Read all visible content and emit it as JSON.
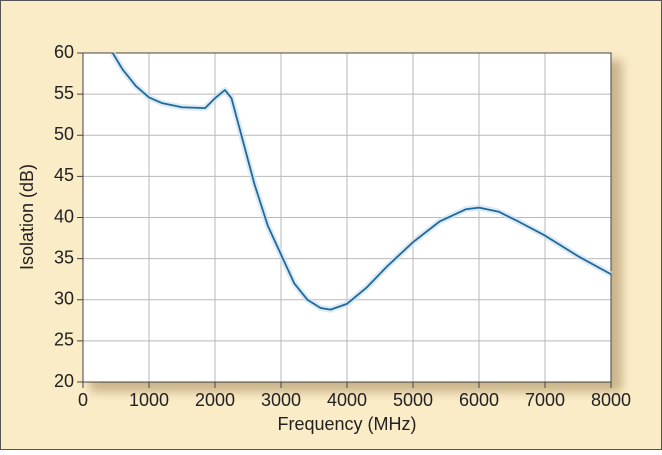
{
  "chart_data": {
    "type": "line",
    "x_label": "Frequency (MHz)",
    "y_label": "Isolation (dB)",
    "x": [
      450,
      600,
      800,
      1000,
      1200,
      1500,
      1850,
      2000,
      2150,
      2250,
      2400,
      2600,
      2800,
      3000,
      3200,
      3400,
      3600,
      3750,
      4000,
      4300,
      4600,
      5000,
      5400,
      5800,
      6000,
      6300,
      6600,
      7000,
      7500,
      8000
    ],
    "values": [
      60,
      58,
      56,
      54.6,
      53.9,
      53.4,
      53.3,
      54.5,
      55.5,
      54.5,
      50,
      44,
      39,
      35.5,
      32,
      30,
      29,
      28.8,
      29.5,
      31.5,
      34,
      37,
      39.5,
      41,
      41.2,
      40.7,
      39.5,
      37.8,
      35.3,
      33.1
    ],
    "color": "#1e6a9e",
    "xlim": [
      0,
      8000
    ],
    "xticks": [
      0,
      1000,
      2000,
      3000,
      4000,
      5000,
      6000,
      7000,
      8000
    ],
    "ylim": [
      20,
      60
    ],
    "yticks": [
      20,
      25,
      30,
      35,
      40,
      45,
      50,
      55,
      60
    ],
    "grid": true
  }
}
